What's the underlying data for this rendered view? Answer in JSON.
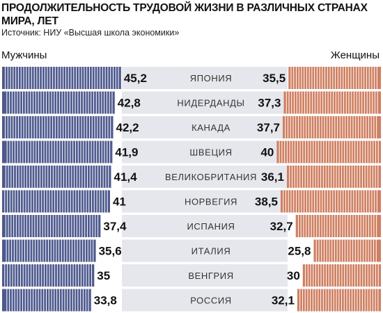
{
  "header": {
    "title": "ПРОДОЛЖИТЕЛЬНОСТЬ ТРУДОВОЙ ЖИЗНИ В РАЗЛИЧНЫХ СТРАНАХ МИРА, ЛЕТ",
    "source": "Источник: НИУ «Высшая школа экономики»"
  },
  "colors": {
    "men": "#4e5a8e",
    "women": "#cf7f61",
    "row_band": "#e6e7ec",
    "bar_divider": "#ffffff"
  },
  "chart_data": {
    "type": "bar",
    "layout": "population-pyramid",
    "title": "ПРОДОЛЖИТЕЛЬНОСТЬ ТРУДОВОЙ ЖИЗНИ В РАЗЛИЧНЫХ СТРАНАХ МИРА, ЛЕТ",
    "subtitle": "Источник: НИУ «Высшая школа экономики»",
    "categories": [
      "ЯПОНИЯ",
      "НИДЕРДАНДЫ",
      "КАНАДА",
      "ШВЕЦИЯ",
      "ВЕЛИКОБРИТАНИЯ",
      "НОРВЕГИЯ",
      "ИСПАНИЯ",
      "ИТАЛИЯ",
      "ВЕНГРИЯ",
      "РОССИЯ"
    ],
    "series": [
      {
        "name": "Мужчины",
        "side": "left",
        "values": [
          45.2,
          42.8,
          42.2,
          41.9,
          41.4,
          41,
          37.4,
          35.6,
          35,
          33.8
        ],
        "labels": [
          "45,2",
          "42,8",
          "42,2",
          "41,9",
          "41,4",
          "41",
          "37,4",
          "35,6",
          "35",
          "33,8"
        ]
      },
      {
        "name": "Женщины",
        "side": "right",
        "values": [
          35.5,
          37.3,
          37.7,
          40,
          36.1,
          38.5,
          32.7,
          25.8,
          30,
          32.1
        ],
        "labels": [
          "35,5",
          "37,3",
          "37,7",
          "40",
          "36,1",
          "38,5",
          "32,7",
          "25,8",
          "30",
          "32,1"
        ]
      }
    ],
    "legend": [
      "Мужчины",
      "Женщины"
    ],
    "legend_placement": "top-left / top-right",
    "bar_segment_years": 1
  }
}
